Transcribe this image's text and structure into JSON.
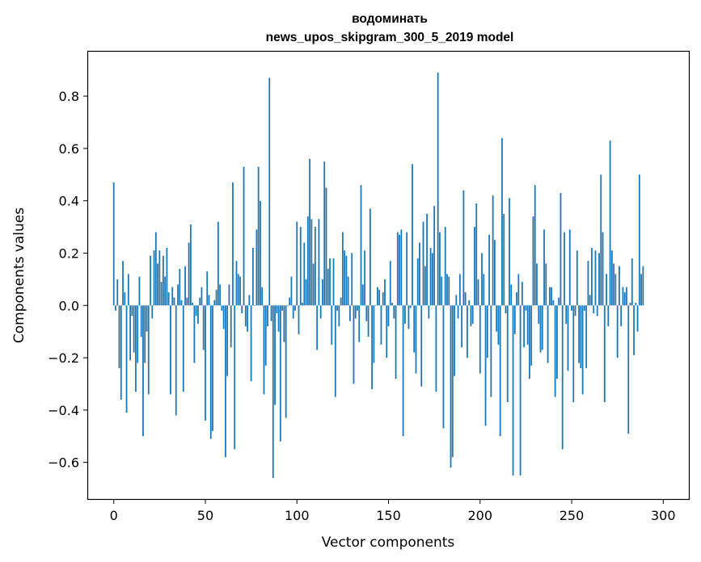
{
  "chart_data": {
    "type": "bar",
    "title": "водоминать",
    "subtitle": "news_upos_skipgram_300_5_2019 model",
    "xlabel": "Vector components",
    "ylabel": "Components values",
    "xlim": [
      -14,
      314
    ],
    "ylim": [
      -0.74,
      0.97
    ],
    "xticks": [
      0,
      50,
      100,
      150,
      200,
      250,
      300
    ],
    "yticks": [
      -0.6,
      -0.4,
      -0.2,
      0.0,
      0.2,
      0.4,
      0.6,
      0.8
    ],
    "ytick_labels": [
      "−0.6",
      "−0.4",
      "−0.2",
      "0.0",
      "0.2",
      "0.4",
      "0.6",
      "0.8"
    ],
    "grid": false,
    "bar_color": "#1f77b4",
    "values": [
      0.47,
      -0.02,
      0.1,
      -0.24,
      -0.36,
      0.17,
      0.05,
      -0.41,
      0.12,
      -0.21,
      -0.04,
      -0.18,
      -0.33,
      -0.22,
      0.11,
      -0.12,
      -0.5,
      -0.22,
      -0.1,
      -0.34,
      0.19,
      -0.05,
      0.21,
      0.28,
      0.16,
      0.21,
      0.09,
      0.19,
      0.11,
      0.22,
      0.05,
      -0.34,
      0.07,
      0.03,
      -0.42,
      0.08,
      0.14,
      0.02,
      -0.33,
      0.15,
      0.03,
      0.24,
      0.31,
      0.01,
      -0.22,
      -0.04,
      -0.07,
      0.03,
      0.07,
      -0.17,
      -0.44,
      0.13,
      0.04,
      -0.51,
      -0.48,
      0.02,
      0.06,
      0.32,
      0.08,
      -0.02,
      -0.09,
      -0.58,
      -0.27,
      0.08,
      -0.16,
      0.47,
      -0.55,
      0.17,
      0.12,
      0.11,
      -0.03,
      0.53,
      -0.08,
      -0.1,
      0.04,
      -0.29,
      0.22,
      0.0,
      0.29,
      0.53,
      0.4,
      0.07,
      -0.34,
      -0.23,
      -0.08,
      0.87,
      -0.06,
      -0.66,
      -0.38,
      -0.03,
      -0.1,
      -0.52,
      -0.02,
      -0.14,
      -0.43,
      0.0,
      0.03,
      0.11,
      -0.05,
      -0.02,
      0.32,
      -0.11,
      0.3,
      0.01,
      0.24,
      0.1,
      0.34,
      0.56,
      0.33,
      0.16,
      0.3,
      -0.17,
      0.33,
      -0.05,
      0.1,
      0.55,
      0.45,
      0.14,
      0.18,
      -0.15,
      0.18,
      -0.35,
      -0.02,
      -0.08,
      0.03,
      0.28,
      0.21,
      0.19,
      0.11,
      -0.06,
      0.2,
      -0.3,
      -0.05,
      -0.02,
      -0.14,
      0.46,
      0.08,
      0.21,
      -0.06,
      -0.12,
      0.37,
      -0.32,
      -0.22,
      0.0,
      0.07,
      0.06,
      -0.15,
      0.05,
      0.1,
      -0.2,
      -0.08,
      0.17,
      0.01,
      -0.05,
      -0.28,
      0.28,
      0.27,
      0.29,
      -0.5,
      -0.07,
      0.28,
      -0.09,
      -0.01,
      0.54,
      -0.18,
      -0.26,
      0.18,
      0.24,
      -0.31,
      0.32,
      0.15,
      0.35,
      -0.05,
      0.22,
      0.2,
      0.38,
      -0.33,
      0.89,
      0.28,
      0.11,
      -0.47,
      0.3,
      0.12,
      0.11,
      -0.62,
      -0.58,
      -0.27,
      0.04,
      -0.05,
      0.12,
      -0.16,
      0.44,
      0.05,
      -0.2,
      0.02,
      -0.08,
      -0.07,
      0.3,
      0.39,
      0.1,
      -0.26,
      0.2,
      0.12,
      -0.46,
      -0.2,
      0.27,
      -0.35,
      0.42,
      0.25,
      -0.1,
      -0.15,
      -0.5,
      0.64,
      0.35,
      -0.03,
      -0.37,
      0.41,
      0.08,
      -0.65,
      -0.11,
      0.05,
      0.12,
      -0.65,
      0.09,
      -0.16,
      -0.02,
      -0.15,
      -0.28,
      -0.23,
      0.34,
      0.46,
      0.16,
      -0.07,
      -0.18,
      -0.17,
      0.29,
      0.16,
      -0.22,
      0.07,
      0.07,
      0.02,
      -0.35,
      -0.28,
      0.03,
      0.43,
      -0.55,
      0.28,
      -0.07,
      -0.25,
      0.29,
      -0.02,
      -0.37,
      -0.04,
      0.21,
      -0.22,
      -0.24,
      -0.34,
      -0.02,
      -0.24,
      0.17,
      0.04,
      0.22,
      -0.03,
      0.21,
      -0.04,
      0.2,
      0.5,
      0.28,
      -0.37,
      0.12,
      -0.08,
      0.63,
      0.21,
      0.16,
      0.12,
      -0.2,
      0.15,
      -0.08,
      0.07,
      0.05,
      0.07,
      -0.49,
      0.01,
      0.18,
      -0.19,
      0.01,
      -0.1,
      0.5,
      0.12,
      0.15
    ]
  }
}
